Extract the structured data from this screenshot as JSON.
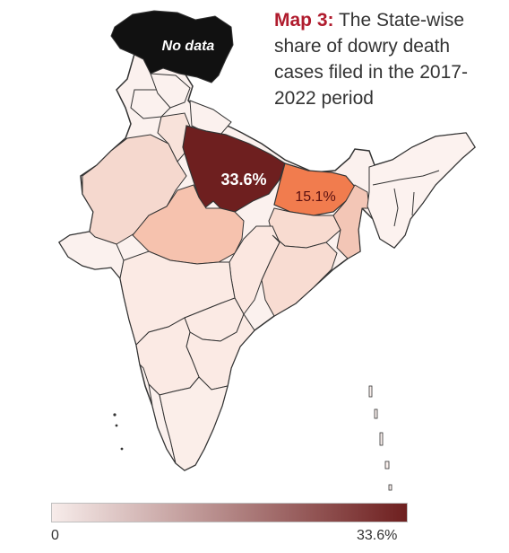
{
  "title": {
    "lead": "Map 3:",
    "text": "The State-wise share of dowry death cases filed in the 2017-2022 period"
  },
  "labels": {
    "no_data": "No data",
    "uttar_pradesh": "33.6%",
    "bihar": "15.1%"
  },
  "legend": {
    "min_label": "0",
    "max_label": "33.6%",
    "min_value": 0,
    "max_value": 33.6,
    "color_low": "#f7ecea",
    "color_high": "#6e1f1f"
  },
  "colors": {
    "no_data": "#111111",
    "border": "#333333",
    "title_accent": "#b01c2e"
  },
  "regions": [
    {
      "name": "uttar-pradesh",
      "value": 33.6
    },
    {
      "name": "bihar",
      "value": 15.1
    },
    {
      "name": "madhya-pradesh",
      "value": 9.2
    },
    {
      "name": "haryana",
      "value": 7.0
    },
    {
      "name": "rajasthan",
      "value": 6.8
    },
    {
      "name": "jharkhand",
      "value": 6.0
    },
    {
      "name": "west-bengal",
      "value": 5.2
    },
    {
      "name": "odisha",
      "value": 4.3
    }
  ]
}
